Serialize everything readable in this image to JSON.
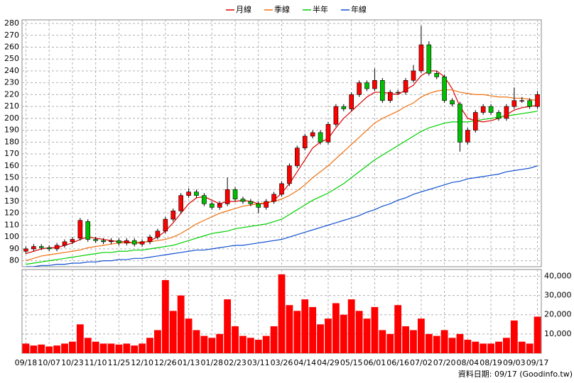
{
  "chart_data": {
    "type": "candlestick",
    "legend": "top",
    "grid": true,
    "up_color": "#ff0000",
    "down_color": "#00c000",
    "categories": [
      "09/18",
      null,
      null,
      "10/07",
      null,
      null,
      "10/23",
      null,
      null,
      "11/10",
      null,
      null,
      "11/25",
      null,
      null,
      "12/10",
      null,
      null,
      "12/26",
      null,
      null,
      "01/13",
      null,
      null,
      "01/28",
      null,
      null,
      "02/23",
      null,
      null,
      "03/11",
      null,
      null,
      "03/26",
      null,
      null,
      "04/14",
      null,
      null,
      "04/29",
      null,
      null,
      "05/15",
      null,
      null,
      "06/01",
      null,
      null,
      "06/16",
      null,
      null,
      "07/02",
      null,
      null,
      "07/20",
      null,
      null,
      "08/04",
      null,
      null,
      "08/19",
      null,
      null,
      "09/03",
      null,
      null,
      "09/17"
    ],
    "open": [
      88,
      90,
      92,
      91,
      90,
      93,
      96,
      99,
      113,
      98,
      97,
      96,
      97,
      95,
      97,
      94,
      96,
      100,
      105,
      115,
      122,
      135,
      138,
      135,
      128,
      125,
      128,
      140,
      132,
      130,
      128,
      125,
      130,
      136,
      145,
      160,
      175,
      185,
      188,
      180,
      195,
      210,
      208,
      220,
      230,
      225,
      232,
      215,
      222,
      222,
      232,
      240,
      262,
      238,
      235,
      215,
      212,
      180,
      190,
      205,
      210,
      205,
      200,
      210,
      215,
      215,
      210
    ],
    "high": [
      92,
      94,
      94,
      93,
      95,
      98,
      100,
      116,
      115,
      100,
      99,
      99,
      99,
      99,
      99,
      98,
      102,
      107,
      117,
      124,
      137,
      141,
      140,
      137,
      130,
      130,
      150,
      142,
      134,
      132,
      130,
      132,
      138,
      147,
      162,
      177,
      187,
      190,
      190,
      197,
      212,
      212,
      222,
      232,
      232,
      242,
      234,
      224,
      224,
      234,
      245,
      278,
      265,
      240,
      237,
      217,
      214,
      192,
      207,
      212,
      212,
      207,
      212,
      226,
      218,
      217,
      223
    ],
    "low": [
      86,
      88,
      89,
      88,
      88,
      91,
      94,
      97,
      96,
      95,
      94,
      94,
      93,
      93,
      92,
      92,
      94,
      98,
      103,
      113,
      120,
      133,
      133,
      126,
      123,
      123,
      126,
      130,
      128,
      126,
      120,
      123,
      128,
      134,
      143,
      158,
      173,
      183,
      178,
      178,
      193,
      206,
      206,
      218,
      223,
      223,
      213,
      213,
      220,
      220,
      230,
      238,
      236,
      233,
      213,
      210,
      172,
      178,
      188,
      203,
      203,
      198,
      198,
      208,
      213,
      208,
      208
    ],
    "close": [
      90,
      92,
      91,
      90,
      93,
      96,
      98,
      114,
      98,
      97,
      96,
      97,
      95,
      97,
      94,
      96,
      100,
      105,
      115,
      122,
      135,
      138,
      135,
      128,
      125,
      128,
      140,
      132,
      130,
      128,
      125,
      130,
      136,
      145,
      160,
      175,
      185,
      188,
      180,
      195,
      210,
      208,
      220,
      230,
      225,
      232,
      215,
      222,
      222,
      232,
      240,
      262,
      238,
      235,
      215,
      212,
      180,
      190,
      205,
      210,
      205,
      200,
      210,
      215,
      215,
      210,
      220
    ],
    "ylim": [
      75,
      283
    ],
    "yticks": [
      80,
      90,
      100,
      110,
      120,
      130,
      140,
      150,
      160,
      170,
      180,
      190,
      200,
      210,
      220,
      230,
      240,
      250,
      260,
      270,
      280
    ],
    "series": [
      {
        "name": "月線",
        "color": "#e00000",
        "values": [
          86,
          88,
          90,
          91,
          91,
          93,
          95,
          98,
          100,
          99,
          98,
          97,
          96,
          96,
          95,
          95,
          97,
          100,
          105,
          112,
          120,
          128,
          133,
          134,
          131,
          128,
          130,
          130,
          131,
          130,
          128,
          128,
          131,
          137,
          145,
          155,
          165,
          175,
          180,
          183,
          192,
          200,
          206,
          212,
          218,
          222,
          222,
          221,
          220,
          224,
          228,
          236,
          240,
          240,
          235,
          225,
          210,
          200,
          198,
          197,
          198,
          200,
          203,
          207,
          209,
          210,
          211
        ]
      },
      {
        "name": "季線",
        "color": "#f07010",
        "values": [
          80,
          82,
          84,
          85,
          86,
          87,
          88,
          89,
          91,
          92,
          93,
          94,
          95,
          95,
          95,
          96,
          96,
          97,
          98,
          100,
          103,
          107,
          111,
          114,
          117,
          120,
          122,
          124,
          126,
          127,
          128,
          129,
          130,
          132,
          135,
          139,
          144,
          150,
          155,
          160,
          166,
          172,
          178,
          184,
          190,
          196,
          200,
          203,
          206,
          210,
          213,
          218,
          221,
          223,
          224,
          224,
          222,
          221,
          220,
          220,
          219,
          218,
          218,
          217,
          217,
          216,
          215
        ]
      },
      {
        "name": "半年",
        "color": "#00d000",
        "values": [
          77,
          78,
          79,
          80,
          81,
          82,
          83,
          84,
          85,
          86,
          87,
          87,
          88,
          88,
          89,
          89,
          90,
          91,
          92,
          93,
          95,
          97,
          99,
          101,
          103,
          104,
          105,
          107,
          108,
          109,
          110,
          111,
          113,
          115,
          119,
          123,
          127,
          131,
          134,
          137,
          141,
          145,
          150,
          155,
          160,
          165,
          169,
          173,
          177,
          181,
          185,
          189,
          192,
          194,
          196,
          197,
          197,
          197,
          198,
          199,
          200,
          201,
          202,
          203,
          204,
          205,
          206
        ]
      },
      {
        "name": "年線",
        "color": "#1050d0",
        "values": [
          75,
          75,
          76,
          76,
          77,
          77,
          78,
          78,
          79,
          79,
          80,
          80,
          81,
          81,
          82,
          82,
          83,
          84,
          85,
          86,
          87,
          88,
          89,
          89,
          90,
          91,
          92,
          93,
          93,
          94,
          95,
          96,
          97,
          98,
          100,
          102,
          104,
          106,
          108,
          110,
          112,
          114,
          116,
          118,
          121,
          123,
          126,
          128,
          131,
          133,
          136,
          138,
          140,
          142,
          144,
          146,
          147,
          149,
          150,
          151,
          152,
          153,
          155,
          156,
          157,
          158,
          160
        ]
      }
    ],
    "volume": {
      "color": "#ff0000",
      "values": [
        5000,
        4000,
        4500,
        3500,
        4000,
        5000,
        6000,
        15000,
        8000,
        6000,
        5000,
        5000,
        4500,
        5000,
        4000,
        5000,
        8000,
        12000,
        38000,
        22000,
        30000,
        18000,
        12000,
        9000,
        8000,
        10000,
        28000,
        14000,
        9000,
        8000,
        7000,
        9000,
        14000,
        41000,
        25000,
        22000,
        28000,
        24000,
        15000,
        18000,
        26000,
        20000,
        28000,
        22000,
        18000,
        24000,
        12000,
        10000,
        25000,
        14000,
        12000,
        18000,
        10000,
        9000,
        12000,
        8000,
        10000,
        7000,
        6000,
        5000,
        5000,
        6000,
        8000,
        17000,
        6000,
        5000,
        19000
      ],
      "ylim": [
        0,
        43500
      ],
      "yticks": [
        {
          "value": 10000,
          "label": "10,000"
        },
        {
          "value": 20000,
          "label": "20,000"
        },
        {
          "value": 30000,
          "label": "30,000"
        },
        {
          "value": 40000,
          "label": "40,000"
        }
      ]
    },
    "footer": "資料日期: 09/17 (Goodinfo.tw)"
  }
}
